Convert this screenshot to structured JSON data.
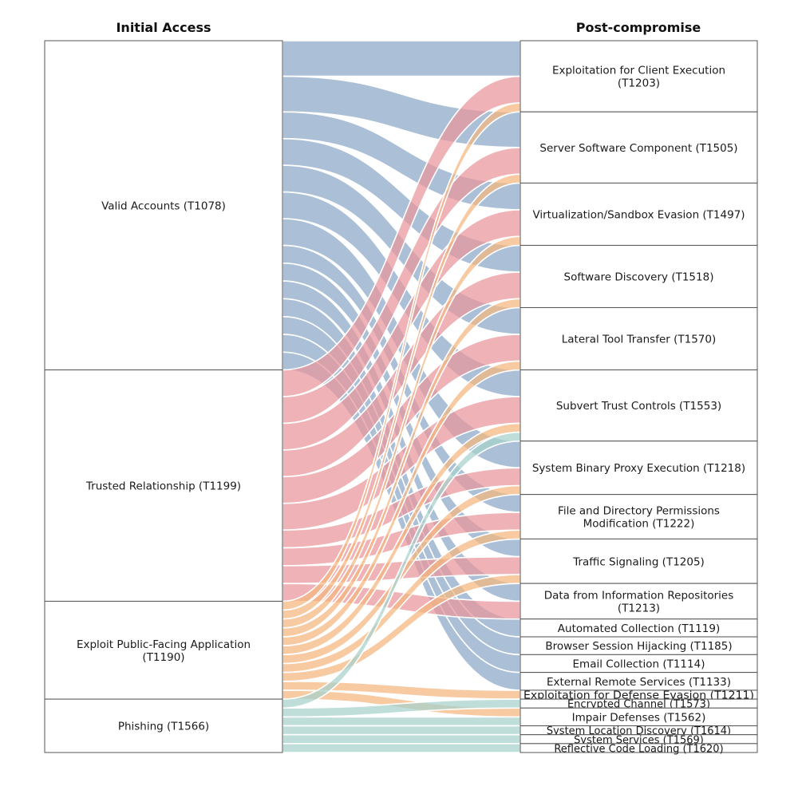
{
  "titles": {
    "left": "Initial Access",
    "right": "Post-compromise"
  },
  "colors": {
    "Valid Accounts (T1078)": "#8aa7c8",
    "Trusted Relationship (T1199)": "#e9959b",
    "Exploit Public-Facing Application (T1190)": "#f4b57e",
    "Phishing (T1566)": "#a6d1cc"
  },
  "sources": [
    "Valid Accounts (T1078)",
    "Trusted Relationship (T1199)",
    "Exploit Public-Facing Application (T1190)",
    "Phishing (T1566)"
  ],
  "targets": [
    "Exploitation for Client Execution (T1203)",
    "Server Software Component (T1505)",
    "Virtualization/Sandbox Evasion (T1497)",
    "Software Discovery (T1518)",
    "Lateral Tool Transfer (T1570)",
    "Subvert Trust Controls (T1553)",
    "System Binary Proxy Execution (T1218)",
    "File and Directory Permissions Modification (T1222)",
    "Traffic Signaling (T1205)",
    "Data from Information Repositories (T1213)",
    "Automated Collection (T1119)",
    "Browser Session Hijacking (T1185)",
    "Email Collection (T1114)",
    "External Remote Services (T1133)",
    "Exploitation for Defense Evasion (T1211)",
    "Encrypted Channel (T1573)",
    "Impair Defenses (T1562)",
    "System Location Discovery (T1614)",
    "System Services (T1569)",
    "Reflective Code Loading (T1620)"
  ],
  "flows": [
    [
      "Valid Accounts (T1078)",
      "Exploitation for Client Execution (T1203)",
      4
    ],
    [
      "Valid Accounts (T1078)",
      "Server Software Component (T1505)",
      4
    ],
    [
      "Valid Accounts (T1078)",
      "Virtualization/Sandbox Evasion (T1497)",
      3
    ],
    [
      "Valid Accounts (T1078)",
      "Software Discovery (T1518)",
      3
    ],
    [
      "Valid Accounts (T1078)",
      "Lateral Tool Transfer (T1570)",
      3
    ],
    [
      "Valid Accounts (T1078)",
      "Subvert Trust Controls (T1553)",
      3
    ],
    [
      "Valid Accounts (T1078)",
      "System Binary Proxy Execution (T1218)",
      3
    ],
    [
      "Valid Accounts (T1078)",
      "File and Directory Permissions Modification (T1222)",
      2
    ],
    [
      "Valid Accounts (T1078)",
      "Traffic Signaling (T1205)",
      2
    ],
    [
      "Valid Accounts (T1078)",
      "Data from Information Repositories (T1213)",
      2
    ],
    [
      "Valid Accounts (T1078)",
      "Automated Collection (T1119)",
      2
    ],
    [
      "Valid Accounts (T1078)",
      "Browser Session Hijacking (T1185)",
      2
    ],
    [
      "Valid Accounts (T1078)",
      "Email Collection (T1114)",
      2
    ],
    [
      "Valid Accounts (T1078)",
      "External Remote Services (T1133)",
      2
    ],
    [
      "Trusted Relationship (T1199)",
      "Exploitation for Client Execution (T1203)",
      3
    ],
    [
      "Trusted Relationship (T1199)",
      "Server Software Component (T1505)",
      3
    ],
    [
      "Trusted Relationship (T1199)",
      "Virtualization/Sandbox Evasion (T1497)",
      3
    ],
    [
      "Trusted Relationship (T1199)",
      "Software Discovery (T1518)",
      3
    ],
    [
      "Trusted Relationship (T1199)",
      "Lateral Tool Transfer (T1570)",
      3
    ],
    [
      "Trusted Relationship (T1199)",
      "Subvert Trust Controls (T1553)",
      3
    ],
    [
      "Trusted Relationship (T1199)",
      "System Binary Proxy Execution (T1218)",
      2
    ],
    [
      "Trusted Relationship (T1199)",
      "File and Directory Permissions Modification (T1222)",
      2
    ],
    [
      "Trusted Relationship (T1199)",
      "Traffic Signaling (T1205)",
      2
    ],
    [
      "Trusted Relationship (T1199)",
      "Data from Information Repositories (T1213)",
      2
    ],
    [
      "Exploit Public-Facing Application (T1190)",
      "Exploitation for Client Execution (T1203)",
      1
    ],
    [
      "Exploit Public-Facing Application (T1190)",
      "Server Software Component (T1505)",
      1
    ],
    [
      "Exploit Public-Facing Application (T1190)",
      "Virtualization/Sandbox Evasion (T1497)",
      1
    ],
    [
      "Exploit Public-Facing Application (T1190)",
      "Software Discovery (T1518)",
      1
    ],
    [
      "Exploit Public-Facing Application (T1190)",
      "Lateral Tool Transfer (T1570)",
      1
    ],
    [
      "Exploit Public-Facing Application (T1190)",
      "Subvert Trust Controls (T1553)",
      1
    ],
    [
      "Exploit Public-Facing Application (T1190)",
      "System Binary Proxy Execution (T1218)",
      1
    ],
    [
      "Exploit Public-Facing Application (T1190)",
      "File and Directory Permissions Modification (T1222)",
      1
    ],
    [
      "Exploit Public-Facing Application (T1190)",
      "Traffic Signaling (T1205)",
      1
    ],
    [
      "Exploit Public-Facing Application (T1190)",
      "Exploitation for Defense Evasion (T1211)",
      1
    ],
    [
      "Exploit Public-Facing Application (T1190)",
      "Impair Defenses (T1562)",
      1
    ],
    [
      "Phishing (T1566)",
      "Subvert Trust Controls (T1553)",
      1
    ],
    [
      "Phishing (T1566)",
      "Encrypted Channel (T1573)",
      1
    ],
    [
      "Phishing (T1566)",
      "Impair Defenses (T1562)",
      1
    ],
    [
      "Phishing (T1566)",
      "System Location Discovery (T1614)",
      1
    ],
    [
      "Phishing (T1566)",
      "System Services (T1569)",
      1
    ],
    [
      "Phishing (T1566)",
      "Reflective Code Loading (T1620)",
      1
    ]
  ]
}
